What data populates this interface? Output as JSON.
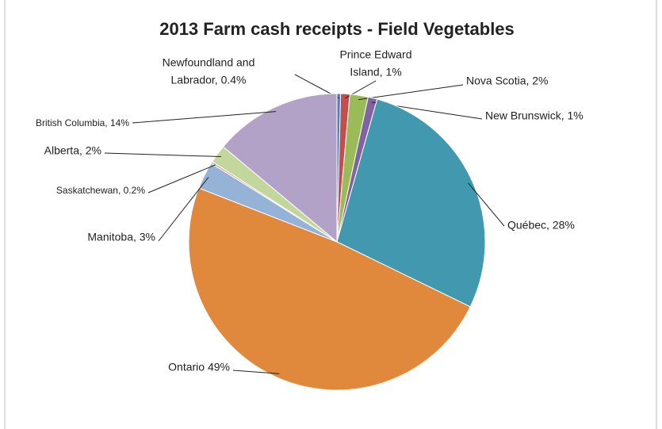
{
  "chart_data": {
    "type": "pie",
    "title": "2013 Farm cash receipts - Field Vegetables",
    "labels": [
      [
        "Newfoundland and",
        "Labrador, 0.4%"
      ],
      [
        "Prince Edward",
        "Island, 1%"
      ],
      [
        "Nova Scotia, 2%"
      ],
      [
        "New Brunswick, 1%"
      ],
      [
        "Québec, 28%"
      ],
      [
        "Ontario 49%"
      ],
      [
        "Manitoba, 3%"
      ],
      [
        "Saskatchewan, 0.2%"
      ],
      [
        "Alberta, 2%"
      ],
      [
        "British Columbia, 14%"
      ]
    ],
    "values": [
      0.4,
      1,
      2,
      1,
      28,
      49,
      3,
      0.2,
      2,
      14
    ],
    "colors": [
      "#4f81bd",
      "#c0504d",
      "#9bbb59",
      "#8064a2",
      "#4198af",
      "#e0883c",
      "#95b3d7",
      "#d99694",
      "#c3d69b",
      "#b3a2c7"
    ]
  }
}
